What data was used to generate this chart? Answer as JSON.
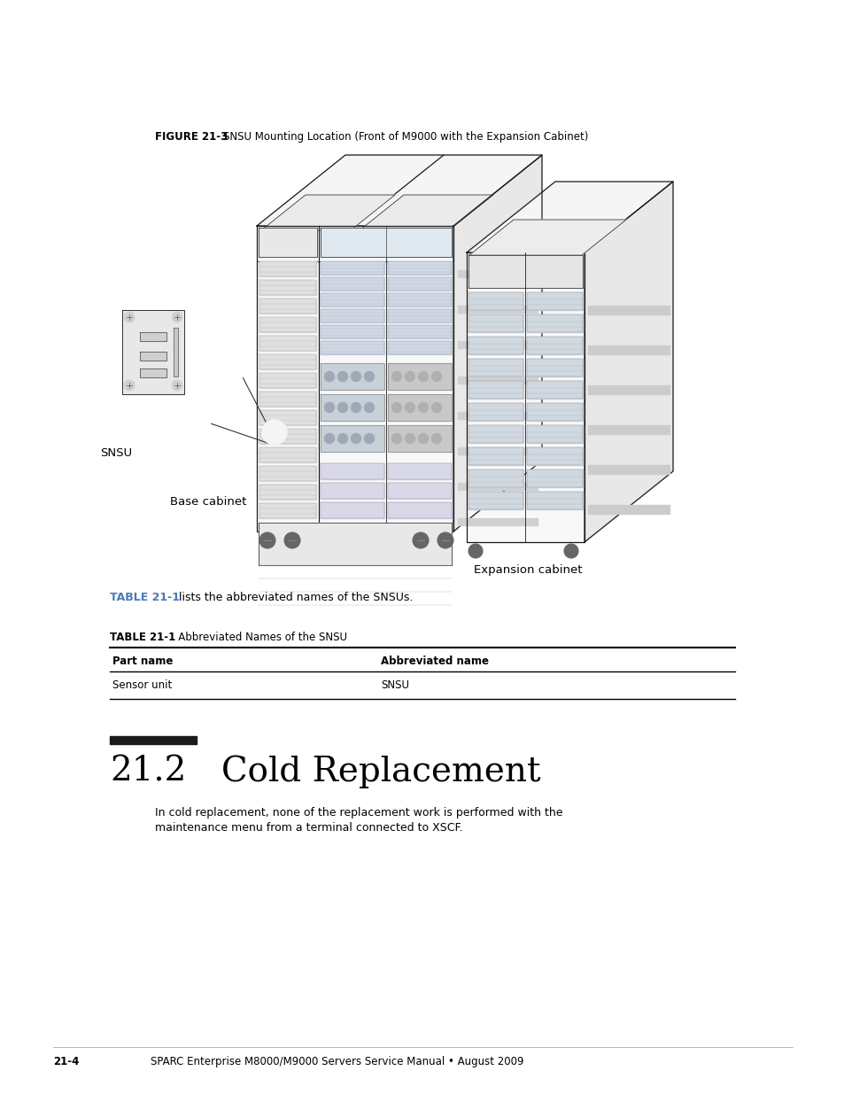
{
  "bg_color": "#ffffff",
  "figure_caption_bold": "FIGURE 21-3",
  "figure_caption_text": "  SNSU Mounting Location (Front of M9000 with the Expansion Cabinet)",
  "table_ref_blue": "TABLE 21-1",
  "table_ref_text": " lists the abbreviated names of the SNSUs.",
  "table_title_bold": "TABLE 21-1",
  "table_title_text": "   Abbreviated Names of the SNSU",
  "table_col1_header": "Part name",
  "table_col2_header": "Abbreviated name",
  "table_row1_col1": "Sensor unit",
  "table_row1_col2": "SNSU",
  "section_bar_color": "#1a1a1a",
  "section_number": "21.2",
  "section_title": "Cold Replacement",
  "body_text": "In cold replacement, none of the replacement work is performed with the\nmaintenance menu from a terminal connected to XSCF.",
  "footer_page": "21-4",
  "footer_text": "SPARC Enterprise M8000/M9000 Servers Service Manual • August 2009",
  "label_snsu": "SNSU",
  "label_base_cabinet": "Base cabinet",
  "label_expansion_cabinet": "Expansion cabinet",
  "text_color": "#000000",
  "blue_color": "#4a7ab5",
  "line_color": "#2a2a2a"
}
